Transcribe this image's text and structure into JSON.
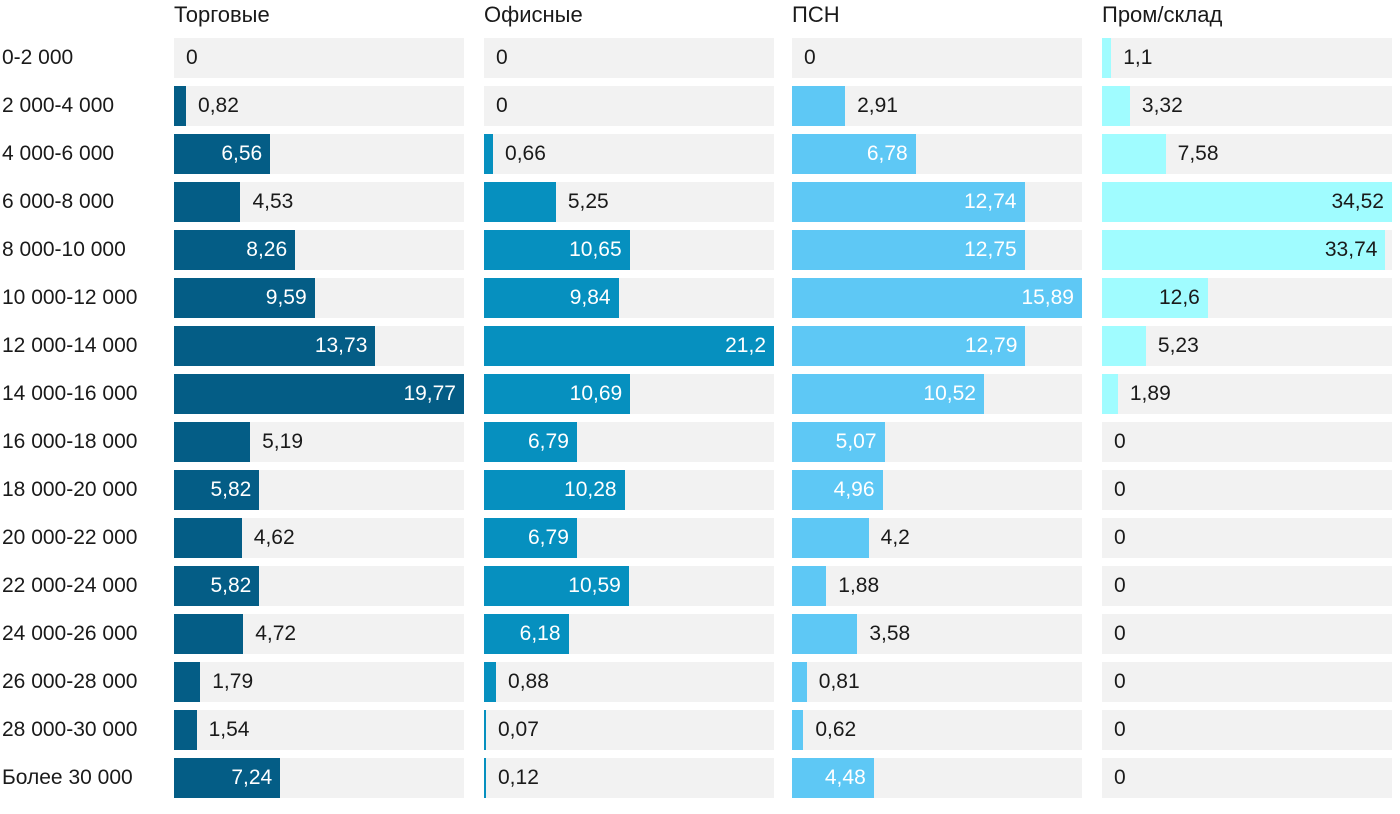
{
  "chart_data": {
    "type": "bar",
    "orientation": "horizontal",
    "layout": "small-multiples",
    "categories": [
      "0-2 000",
      "2 000-4 000",
      "4 000-6 000",
      "6 000-8 000",
      "8 000-10 000",
      "10 000-12 000",
      "12 000-14 000",
      "14 000-16 000",
      "16 000-18 000",
      "18 000-20 000",
      "20 000-22 000",
      "22 000-24 000",
      "24 000-26 000",
      "26 000-28 000",
      "28 000-30 000",
      "Более 30 000"
    ],
    "series": [
      {
        "name": "Торговые",
        "color": "#045d86",
        "xlim": [
          0,
          19.77
        ],
        "values": [
          0,
          0.82,
          6.56,
          4.53,
          8.26,
          9.59,
          13.73,
          19.77,
          5.19,
          5.82,
          4.62,
          5.82,
          4.72,
          1.79,
          1.54,
          7.24
        ],
        "labels": [
          "0",
          "0,82",
          "6,56",
          "4,53",
          "8,26",
          "9,59",
          "13,73",
          "19,77",
          "5,19",
          "5,82",
          "4,62",
          "5,82",
          "4,72",
          "1,79",
          "1,54",
          "7,24"
        ]
      },
      {
        "name": "Офисные",
        "color": "#0690bf",
        "xlim": [
          0,
          21.2
        ],
        "values": [
          0,
          0,
          0.66,
          5.25,
          10.65,
          9.84,
          21.2,
          10.69,
          6.79,
          10.28,
          6.79,
          10.59,
          6.18,
          0.88,
          0.07,
          0.12
        ],
        "labels": [
          "0",
          "0",
          "0,66",
          "5,25",
          "10,65",
          "9,84",
          "21,2",
          "10,69",
          "6,79",
          "10,28",
          "6,79",
          "10,59",
          "6,18",
          "0,88",
          "0,07",
          "0,12"
        ]
      },
      {
        "name": "ПСН",
        "color": "#5ec8f5",
        "xlim": [
          0,
          15.89
        ],
        "values": [
          0,
          2.91,
          6.78,
          12.74,
          12.75,
          15.89,
          12.79,
          10.52,
          5.07,
          4.96,
          4.2,
          1.88,
          3.58,
          0.81,
          0.62,
          4.48
        ],
        "labels": [
          "0",
          "2,91",
          "6,78",
          "12,74",
          "12,75",
          "15,89",
          "12,79",
          "10,52",
          "5,07",
          "4,96",
          "4,2",
          "1,88",
          "3,58",
          "0,81",
          "0,62",
          "4,48"
        ]
      },
      {
        "name": "Пром/склад",
        "color": "#a0fcff",
        "xlim": [
          0,
          34.52
        ],
        "values": [
          1.1,
          3.32,
          7.58,
          34.52,
          33.74,
          12.6,
          5.23,
          1.89,
          0,
          0,
          0,
          0,
          0,
          0,
          0,
          0
        ],
        "labels": [
          "1,1",
          "3,32",
          "7,58",
          "34,52",
          "33,74",
          "12,6",
          "5,23",
          "1,89",
          "0",
          "0",
          "0",
          "0",
          "0",
          "0",
          "0",
          "0"
        ]
      }
    ],
    "title": "",
    "xlabel": "",
    "ylabel": "",
    "grid": false,
    "legend": "none"
  }
}
